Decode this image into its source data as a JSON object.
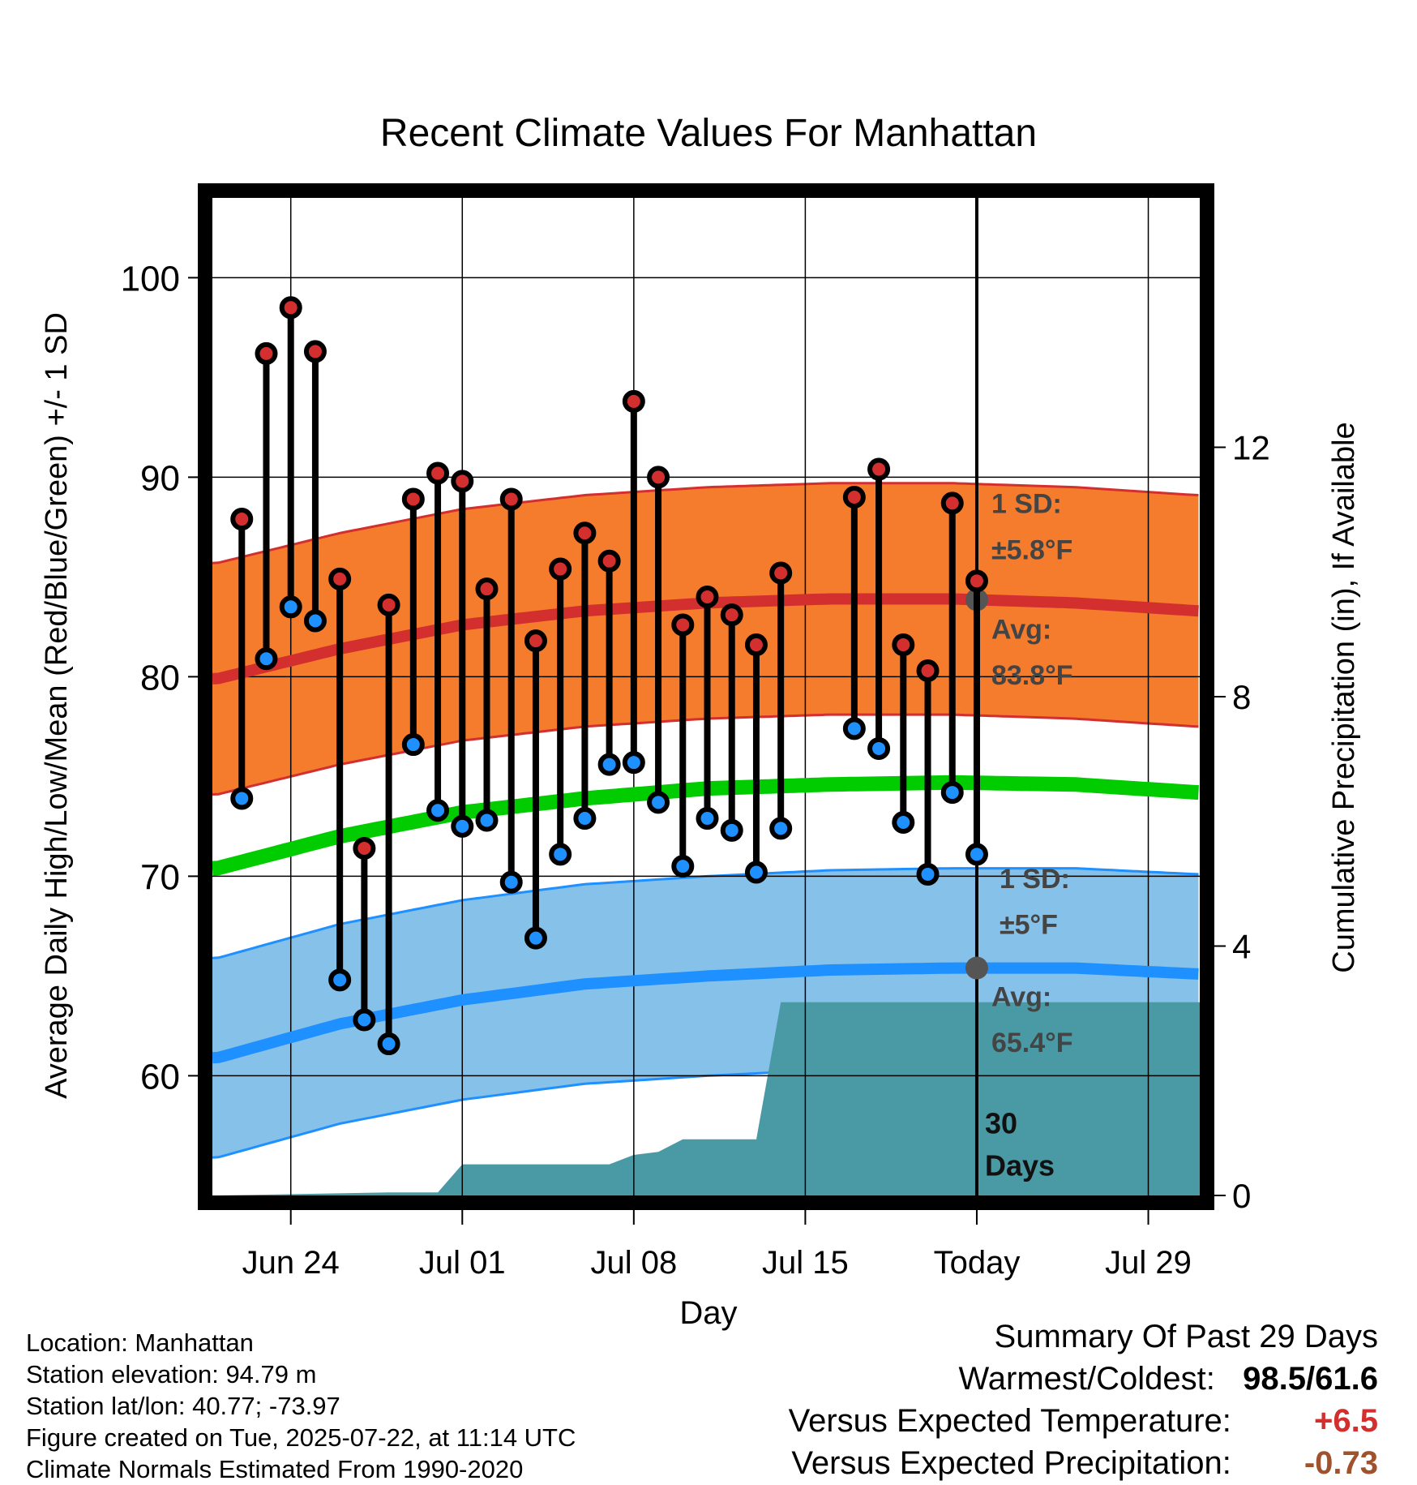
{
  "chart_data": {
    "type": "line",
    "title": "Recent Climate Values For Manhattan",
    "xlabel": "Day",
    "ylabel_left": "Average Daily High/Low/Mean (Red/Blue/Green) +/- 1 SD",
    "ylabel_right": "Cumulative Precipitation (in), If Available",
    "ylim": [
      54,
      104
    ],
    "y_ticks": [
      "100",
      "90",
      "80",
      "70",
      "60"
    ],
    "y2_ticks": [
      "12",
      "8",
      "4",
      "0"
    ],
    "y2_tick_values": [
      12,
      8,
      4,
      0
    ],
    "y2lim": [
      0,
      16
    ],
    "x_ticks": [
      "Jun 24",
      "Jul 01",
      "Jul 08",
      "Jul 15",
      "Today",
      "Jul 29"
    ],
    "x_tick_days": [
      24,
      31,
      38,
      45,
      52,
      59
    ],
    "xlim": [
      20.8,
      61.1
    ],
    "today_day": 52,
    "days_label": "30\nDays",
    "days_label_lines": [
      "30",
      "Days"
    ],
    "grid": true,
    "series": [
      {
        "name": "High",
        "color": "#d32f2f",
        "days": [
          22,
          23,
          24,
          25,
          26,
          27,
          28,
          29,
          30,
          31,
          32,
          33,
          34,
          35,
          36,
          37,
          38,
          39,
          40,
          41,
          42,
          43,
          44,
          47,
          48,
          49,
          50,
          51,
          52
        ],
        "values": [
          87.9,
          96.2,
          98.5,
          96.3,
          84.9,
          71.4,
          83.6,
          88.9,
          90.2,
          89.8,
          84.4,
          88.9,
          81.8,
          85.4,
          87.2,
          85.8,
          93.8,
          90.0,
          82.6,
          84.0,
          83.1,
          81.6,
          85.2,
          89.0,
          90.4,
          81.6,
          80.3,
          88.7,
          84.8
        ]
      },
      {
        "name": "Low",
        "color": "#1e90ff",
        "days": [
          22,
          23,
          24,
          25,
          26,
          27,
          28,
          29,
          30,
          31,
          32,
          33,
          34,
          35,
          36,
          37,
          38,
          39,
          40,
          41,
          42,
          43,
          44,
          47,
          48,
          49,
          50,
          51,
          52
        ],
        "values": [
          73.9,
          80.9,
          83.5,
          82.8,
          64.8,
          62.8,
          61.6,
          76.6,
          73.3,
          72.5,
          72.8,
          69.7,
          66.9,
          71.1,
          72.9,
          75.6,
          75.7,
          73.7,
          70.5,
          72.9,
          72.3,
          70.2,
          72.4,
          77.4,
          76.4,
          72.7,
          70.1,
          74.2,
          71.1
        ]
      },
      {
        "name": "Normal High",
        "color": "#d32f2f",
        "sd_color": "#f47c2c",
        "days": [
          21,
          26,
          31,
          36,
          41,
          46,
          51,
          56,
          61
        ],
        "values": [
          79.9,
          81.4,
          82.6,
          83.3,
          83.7,
          83.9,
          83.9,
          83.7,
          83.3
        ],
        "sd": 5.8
      },
      {
        "name": "Normal Low",
        "color": "#1e90ff",
        "sd_color": "#85c1e9",
        "days": [
          21,
          26,
          31,
          36,
          41,
          46,
          51,
          56,
          61
        ],
        "values": [
          60.9,
          62.6,
          63.8,
          64.6,
          65.0,
          65.3,
          65.4,
          65.4,
          65.1
        ],
        "sd": 5.0
      },
      {
        "name": "Normal Mean",
        "color": "#00cc00",
        "days": [
          21,
          26,
          31,
          36,
          41,
          46,
          51,
          56,
          61
        ],
        "values": [
          70.4,
          72.0,
          73.2,
          73.9,
          74.4,
          74.6,
          74.7,
          74.6,
          74.2
        ]
      },
      {
        "name": "Cumulative Precipitation",
        "color": "#4a9aa6",
        "days": [
          21,
          28,
          30,
          31,
          37,
          38,
          39,
          40,
          43,
          44,
          61.1
        ],
        "values": [
          0,
          0.05,
          0.05,
          0.5,
          0.5,
          0.65,
          0.7,
          0.9,
          0.9,
          3.1,
          3.1
        ]
      }
    ],
    "annotations": {
      "high_sd_label": "1 SD:",
      "high_sd_value": "±5.8°F",
      "high_avg_label": "Avg:",
      "high_avg_value": "83.8°F",
      "low_sd_label": "1 SD:",
      "low_sd_value": "±5°F",
      "low_avg_label": "Avg:",
      "low_avg_value": "65.4°F"
    }
  },
  "footer": {
    "location": "Location: Manhattan",
    "elevation": "Station elevation: 94.79 m",
    "latlon": "Station lat/lon: 40.77; -73.97",
    "created": "Figure created on Tue, 2025-07-22, at 11:14 UTC",
    "normals": "Climate Normals Estimated From 1990-2020"
  },
  "summary": {
    "title": "Summary Of Past 29 Days",
    "warm_cold_label": "Warmest/Coldest:",
    "warm_cold_value": "98.5/61.6",
    "temp_label": "Versus Expected Temperature:",
    "temp_value": "+6.5",
    "temp_color": "#d32f2f",
    "precip_label": "Versus Expected Precipitation:",
    "precip_value": "-0.73",
    "precip_color": "#a0522d"
  }
}
